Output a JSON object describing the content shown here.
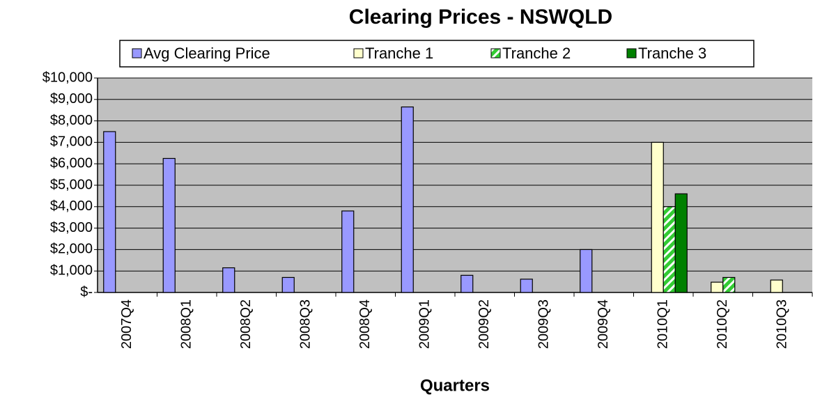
{
  "chart_data": {
    "type": "bar",
    "title": "Clearing Prices - NSWQLD",
    "x_label": "Quarters",
    "categories": [
      "2007Q4",
      "2008Q1",
      "2008Q2",
      "2008Q3",
      "2008Q4",
      "2009Q1",
      "2009Q2",
      "2009Q3",
      "2009Q4",
      "2010Q1",
      "2010Q2",
      "2010Q3"
    ],
    "series": [
      {
        "name": "Avg Clearing Price",
        "color": "#9999ff",
        "values": [
          7500,
          6250,
          1150,
          700,
          3800,
          8650,
          800,
          620,
          2000,
          null,
          null,
          null
        ]
      },
      {
        "name": "Tranche 1",
        "color": "#ffffcc",
        "values": [
          null,
          null,
          null,
          null,
          null,
          null,
          null,
          null,
          null,
          7000,
          480,
          580
        ]
      },
      {
        "name": "Tranche 2",
        "color": "#33cc33",
        "values": [
          null,
          null,
          null,
          null,
          null,
          null,
          null,
          null,
          null,
          4000,
          700,
          null
        ]
      },
      {
        "name": "Tranche 3",
        "color": "#008000",
        "values": [
          null,
          null,
          null,
          null,
          null,
          null,
          null,
          null,
          null,
          4600,
          null,
          null
        ]
      }
    ],
    "ylim": [
      0,
      10000
    ],
    "yticks": [
      {
        "value": 0,
        "label": "$-"
      },
      {
        "value": 1000,
        "label": "$1,000"
      },
      {
        "value": 2000,
        "label": "$2,000"
      },
      {
        "value": 3000,
        "label": "$3,000"
      },
      {
        "value": 4000,
        "label": "$4,000"
      },
      {
        "value": 5000,
        "label": "$5,000"
      },
      {
        "value": 6000,
        "label": "$6,000"
      },
      {
        "value": 7000,
        "label": "$7,000"
      },
      {
        "value": 8000,
        "label": "$8,000"
      },
      {
        "value": 9000,
        "label": "$9,000"
      },
      {
        "value": 10000,
        "label": "$10,000"
      }
    ],
    "grid": true,
    "legend": "top"
  }
}
